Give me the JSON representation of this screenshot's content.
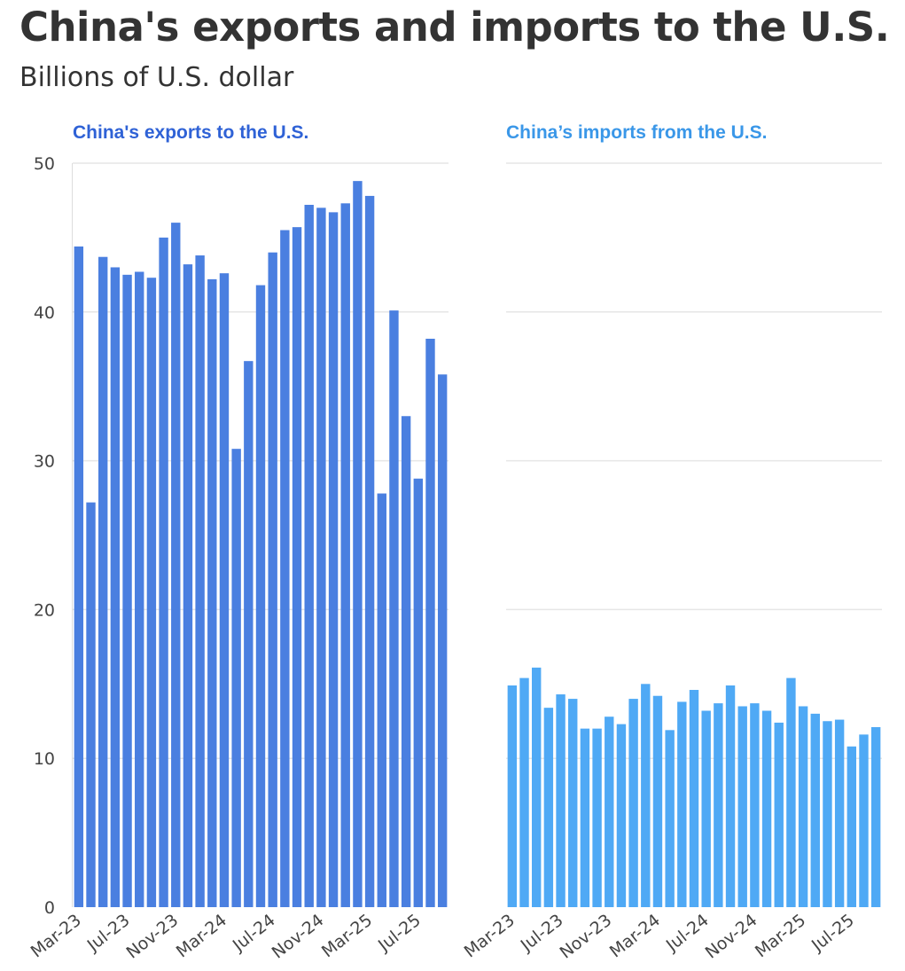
{
  "header": {
    "title": "China's exports and imports to the U.S.",
    "subtitle": "Billions of U.S. dollar"
  },
  "chart_data": [
    {
      "type": "bar",
      "title": "China's exports to the U.S.",
      "color": "#4a7fe0",
      "title_color": "#2f62d6",
      "ylim": [
        0,
        50
      ],
      "yticks": [
        0,
        10,
        20,
        30,
        40,
        50
      ],
      "grid": true,
      "categories": [
        "Mar-23",
        "Apr-23",
        "May-23",
        "Jun-23",
        "Jul-23",
        "Aug-23",
        "Sep-23",
        "Oct-23",
        "Nov-23",
        "Dec-23",
        "Jan-24",
        "Feb-24",
        "Mar-24",
        "Apr-24",
        "May-24",
        "Jun-24",
        "Jul-24",
        "Aug-24",
        "Sep-24",
        "Oct-24",
        "Nov-24",
        "Dec-24",
        "Jan-25",
        "Feb-25",
        "Mar-25",
        "Apr-25",
        "May-25",
        "Jun-25",
        "Jul-25",
        "Aug-25",
        "Sep-25"
      ],
      "values": [
        44.4,
        27.2,
        43.7,
        43.0,
        42.5,
        42.7,
        42.3,
        45.0,
        46.0,
        43.2,
        43.8,
        42.2,
        42.6,
        30.8,
        36.7,
        41.8,
        44.0,
        45.5,
        45.7,
        47.2,
        47.0,
        46.7,
        47.3,
        48.8,
        47.8,
        27.8,
        40.1,
        33.0,
        28.8,
        38.2,
        35.8
      ],
      "x_tick_labels": [
        "Mar-23",
        "Jul-23",
        "Nov-23",
        "Mar-24",
        "Jul-24",
        "Nov-24",
        "Mar-25",
        "Jul-25"
      ]
    },
    {
      "type": "bar",
      "title": "China’s imports from the U.S.",
      "color": "#4fa9f5",
      "title_color": "#3a97e8",
      "ylim": [
        0,
        50
      ],
      "grid": true,
      "categories": [
        "Mar-23",
        "Apr-23",
        "May-23",
        "Jun-23",
        "Jul-23",
        "Aug-23",
        "Sep-23",
        "Oct-23",
        "Nov-23",
        "Dec-23",
        "Jan-24",
        "Feb-24",
        "Mar-24",
        "Apr-24",
        "May-24",
        "Jun-24",
        "Jul-24",
        "Aug-24",
        "Sep-24",
        "Oct-24",
        "Nov-24",
        "Dec-24",
        "Jan-25",
        "Feb-25",
        "Mar-25",
        "Apr-25",
        "May-25",
        "Jun-25",
        "Jul-25",
        "Aug-25",
        "Sep-25"
      ],
      "values": [
        14.9,
        15.4,
        16.1,
        13.4,
        14.3,
        14.0,
        12.0,
        12.0,
        12.8,
        12.3,
        14.0,
        15.0,
        14.2,
        11.9,
        13.8,
        14.6,
        13.2,
        13.7,
        14.9,
        13.5,
        13.7,
        13.2,
        12.4,
        15.4,
        13.5,
        13.0,
        12.5,
        12.6,
        10.8,
        11.6,
        12.1
      ],
      "x_tick_labels": [
        "Mar-23",
        "Jul-23",
        "Nov-23",
        "Mar-24",
        "Jul-24",
        "Nov-24",
        "Mar-25",
        "Jul-25"
      ]
    }
  ]
}
